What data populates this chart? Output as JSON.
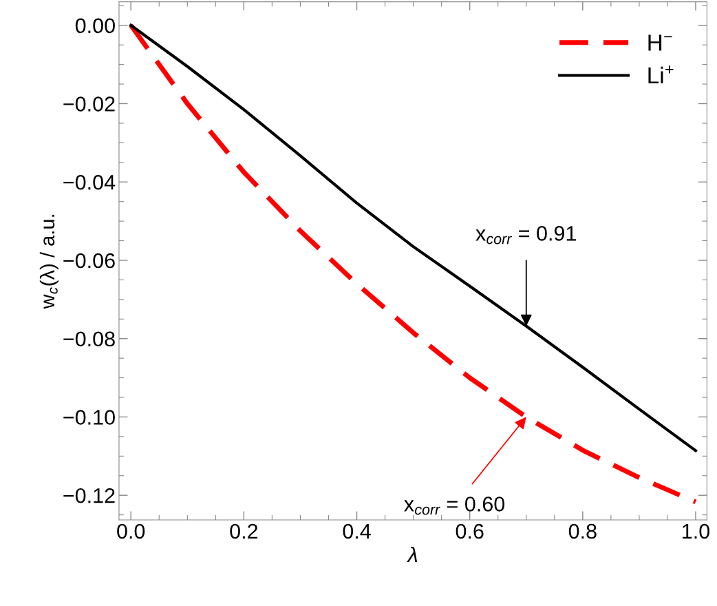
{
  "chart_data": {
    "type": "line",
    "xlabel": "λ",
    "ylabel": "w$_{c}$(λ) / a.u.",
    "x": [
      0,
      0.1,
      0.2,
      0.3,
      0.4,
      0.5,
      0.6,
      0.7,
      0.8,
      0.9,
      1.0
    ],
    "series": [
      {
        "name": "H$^{−}$",
        "color": "#ff0000",
        "line_style": "dashed",
        "values": [
          0,
          -0.02,
          -0.0375,
          -0.0525,
          -0.066,
          -0.0785,
          -0.09,
          -0.1,
          -0.1085,
          -0.1155,
          -0.1217
        ]
      },
      {
        "name": "Li$^{+}$",
        "color": "#000000",
        "line_style": "solid",
        "values": [
          0,
          -0.0105,
          -0.0215,
          -0.0333,
          -0.0454,
          -0.0565,
          -0.0666,
          -0.0768,
          -0.0873,
          -0.098,
          -0.1086
        ]
      }
    ],
    "annotations": [
      {
        "text": "x$_{corr}$ = 0.91",
        "x": 0.7,
        "y": -0.0768
      },
      {
        "text": "x$_{corr}$ = 0.60",
        "x": 0.7,
        "y": -0.1
      }
    ],
    "xlim": [
      -0.021,
      1.02
    ],
    "ylim": [
      -0.1263,
      0.006
    ],
    "xticks": [
      {
        "value": 0,
        "label": "0.0"
      },
      0.2,
      0.4,
      0.6,
      0.8,
      {
        "value": 1.0,
        "label": "1.0"
      }
    ],
    "yticks": [
      {
        "value": 0,
        "label": "0.00"
      },
      {
        "value": -0.02,
        "label": "−0.02"
      },
      {
        "value": -0.04,
        "label": "−0.04"
      },
      {
        "value": -0.06,
        "label": "−0.06"
      },
      {
        "value": -0.08,
        "label": "−0.08"
      },
      {
        "value": -0.1,
        "label": "−0.10"
      },
      {
        "value": -0.12,
        "label": "−0.12"
      }
    ],
    "grid": false,
    "legend": "top right",
    "marker": "none"
  }
}
